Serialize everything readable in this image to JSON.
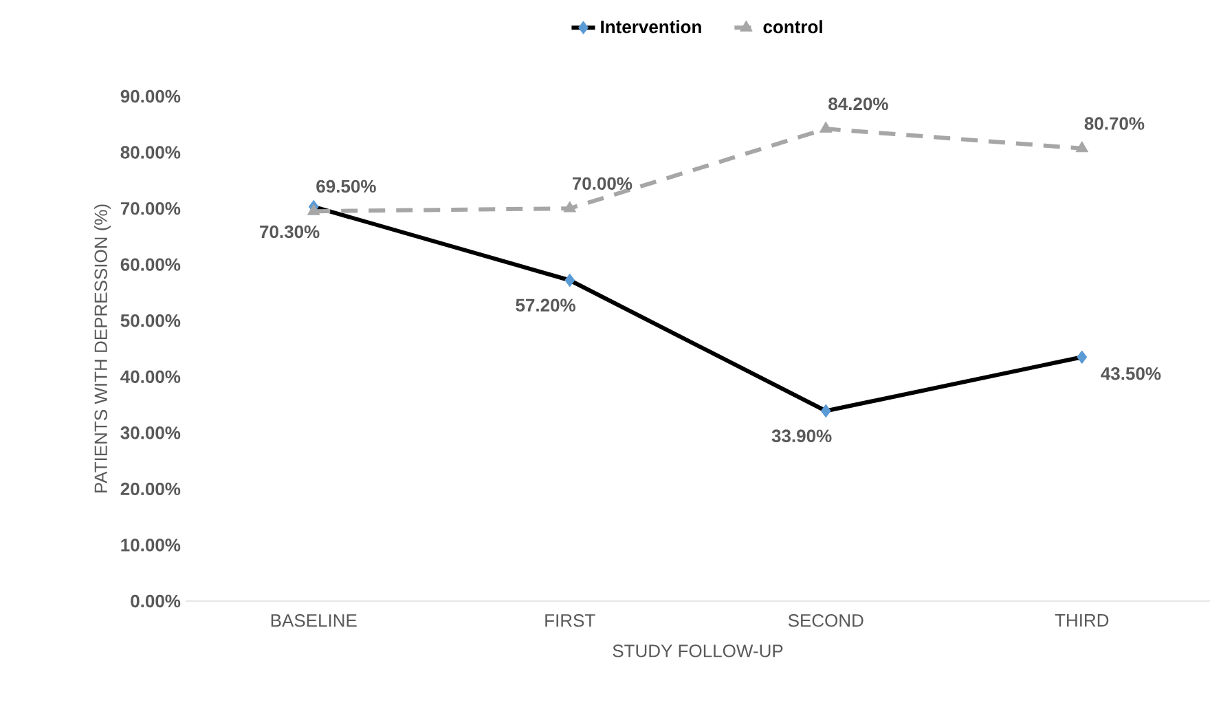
{
  "chart_data": {
    "type": "line",
    "xlabel": "STUDY FOLLOW-UP",
    "ylabel": "PATIENTS WITH DEPRESSION (%)",
    "categories": [
      "BASELINE",
      "FIRST",
      "SECOND",
      "THIRD"
    ],
    "series": [
      {
        "name": "Intervention",
        "color": "#000000",
        "colors": [
          "#5b9bd5",
          "#5b9bd5",
          "#5b9bd5",
          "#5b9bd5"
        ],
        "marker": "diamond",
        "line_style": "solid",
        "values": [
          70.3,
          57.2,
          33.9,
          43.5
        ],
        "value_labels": [
          "70.30%",
          "57.20%",
          "33.90%",
          "43.50%"
        ]
      },
      {
        "name": "control",
        "color": "#a6a6a6",
        "marker": "triangle",
        "line_style": "dashed",
        "values": [
          69.5,
          70.0,
          84.2,
          80.7
        ],
        "value_labels": [
          "69.50%",
          "70.00%",
          "84.20%",
          "80.70%"
        ]
      }
    ],
    "ylim": [
      0,
      90
    ],
    "yticks": [
      {
        "value": 0,
        "label": "0.00%"
      },
      {
        "value": 10,
        "label": "10.00%"
      },
      {
        "value": 20,
        "label": "20.00%"
      },
      {
        "value": 30,
        "label": "30.00%"
      },
      {
        "value": 40,
        "label": "40.00%"
      },
      {
        "value": 50,
        "label": "50.00%"
      },
      {
        "value": 60,
        "label": "60.00%"
      },
      {
        "value": 70,
        "label": "70.00%"
      },
      {
        "value": 80,
        "label": "80.00%"
      },
      {
        "value": 90,
        "label": "90.00%"
      }
    ],
    "legend": "top"
  }
}
